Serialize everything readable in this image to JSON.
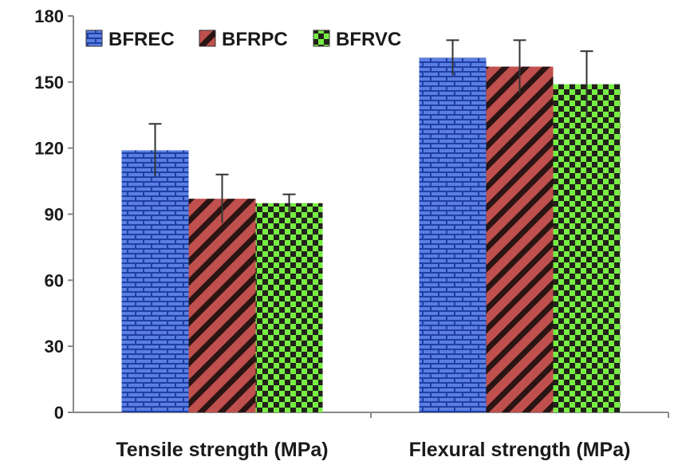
{
  "chart_data": {
    "type": "bar",
    "categories": [
      "Tensile strength (MPa)",
      "Flexural strength (MPa)"
    ],
    "series": [
      {
        "name": "BFREC",
        "values": [
          119,
          161
        ],
        "errors": [
          12,
          8
        ],
        "color": "#4a6fd4"
      },
      {
        "name": "BFRPC",
        "values": [
          97,
          157
        ],
        "errors": [
          11,
          12
        ],
        "color": "#c0504d"
      },
      {
        "name": "BFRVC",
        "values": [
          95,
          149
        ],
        "errors": [
          4,
          15
        ],
        "color": "#66ee44"
      }
    ],
    "ylim": [
      0,
      180
    ],
    "yticks": [
      0,
      30,
      60,
      90,
      120,
      150,
      180
    ],
    "legend_position": "top-left",
    "grid": false
  }
}
